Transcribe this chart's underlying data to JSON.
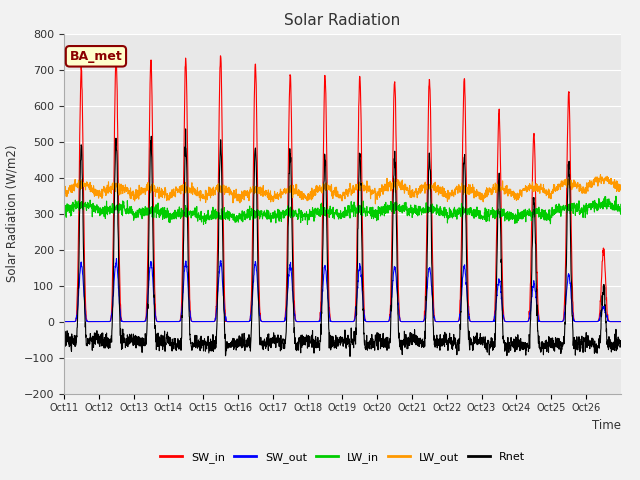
{
  "title": "Solar Radiation",
  "ylabel": "Solar Radiation (W/m2)",
  "xlabel": "Time",
  "annotation": "BA_met",
  "ylim": [
    -200,
    800
  ],
  "yticks": [
    -200,
    -100,
    0,
    100,
    200,
    300,
    400,
    500,
    600,
    700,
    800
  ],
  "xtick_labels": [
    "Oct 11",
    "Oct 12",
    "Oct 13",
    "Oct 14",
    "Oct 15",
    "Oct 16",
    "Oct 17",
    "Oct 18",
    "Oct 19",
    "Oct 20",
    "Oct 21",
    "Oct 22",
    "Oct 23",
    "Oct 24",
    "Oct 25",
    "Oct 26"
  ],
  "legend_labels": [
    "SW_in",
    "SW_out",
    "LW_in",
    "LW_out",
    "Rnet"
  ],
  "legend_colors": [
    "#ff0000",
    "#0000ff",
    "#00cc00",
    "#ff9900",
    "#000000"
  ],
  "fig_bg_color": "#f2f2f2",
  "plot_bg_color": "#e8e8e8",
  "n_days": 16,
  "n_per_day": 144,
  "SW_in_peaks": [
    700,
    730,
    725,
    730,
    740,
    715,
    690,
    680,
    680,
    670,
    675,
    675,
    580,
    520,
    640,
    200
  ],
  "SW_out_peaks": [
    160,
    165,
    165,
    165,
    165,
    162,
    155,
    152,
    153,
    150,
    152,
    152,
    115,
    105,
    130,
    40
  ],
  "LW_in_base": [
    310,
    305,
    295,
    290,
    285,
    290,
    290,
    295,
    300,
    305,
    300,
    295,
    290,
    290,
    305,
    315
  ],
  "LW_out_base": [
    355,
    350,
    345,
    345,
    345,
    340,
    340,
    345,
    350,
    355,
    350,
    345,
    345,
    350,
    360,
    370
  ]
}
